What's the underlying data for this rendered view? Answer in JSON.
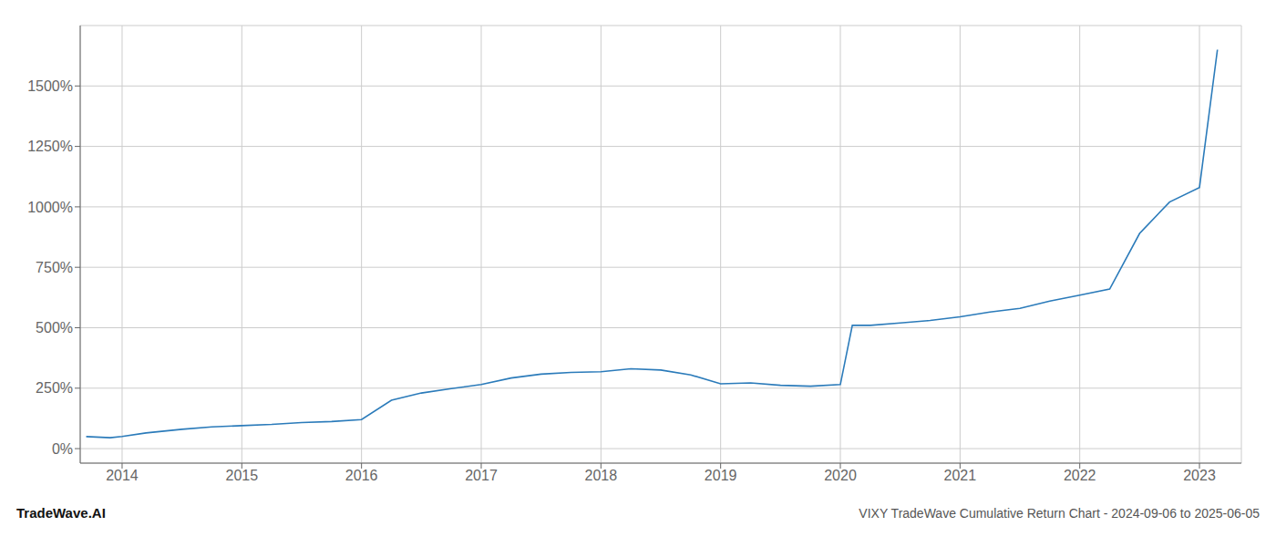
{
  "chart_data": {
    "type": "line",
    "title": "VIXY TradeWave Cumulative Return Chart - 2024-09-06 to 2025-06-05",
    "annotations": [
      "TradeWave.AI"
    ],
    "x": [
      2013.7,
      2013.9,
      2014.0,
      2014.2,
      2014.5,
      2014.75,
      2015.0,
      2015.25,
      2015.5,
      2015.75,
      2016.0,
      2016.25,
      2016.5,
      2016.75,
      2017.0,
      2017.25,
      2017.5,
      2017.75,
      2018.0,
      2018.25,
      2018.5,
      2018.75,
      2019.0,
      2019.25,
      2019.5,
      2019.75,
      2020.0,
      2020.1,
      2020.25,
      2020.5,
      2020.75,
      2021.0,
      2021.25,
      2021.5,
      2021.75,
      2022.0,
      2022.25,
      2022.5,
      2022.75,
      2023.0,
      2023.15
    ],
    "values": [
      50,
      45,
      50,
      65,
      80,
      90,
      95,
      100,
      108,
      112,
      120,
      200,
      230,
      248,
      265,
      292,
      308,
      315,
      318,
      330,
      325,
      305,
      268,
      272,
      262,
      258,
      265,
      510,
      510,
      520,
      530,
      545,
      565,
      580,
      610,
      635,
      660,
      890,
      1020,
      1080,
      1650
    ],
    "color": "#2b7bba",
    "xlim": [
      2013.65,
      2023.35
    ],
    "ylim": [
      -60,
      1750
    ],
    "xticks": [
      2014,
      2015,
      2016,
      2017,
      2018,
      2019,
      2020,
      2021,
      2022,
      2023
    ],
    "yticks": [
      {
        "value": 0,
        "label": "0%"
      },
      {
        "value": 250,
        "label": "250%"
      },
      {
        "value": 500,
        "label": "500%"
      },
      {
        "value": 750,
        "label": "750%"
      },
      {
        "value": 1000,
        "label": "1000%"
      },
      {
        "value": 1250,
        "label": "1250%"
      },
      {
        "value": 1500,
        "label": "1500%"
      }
    ],
    "grid": true
  }
}
